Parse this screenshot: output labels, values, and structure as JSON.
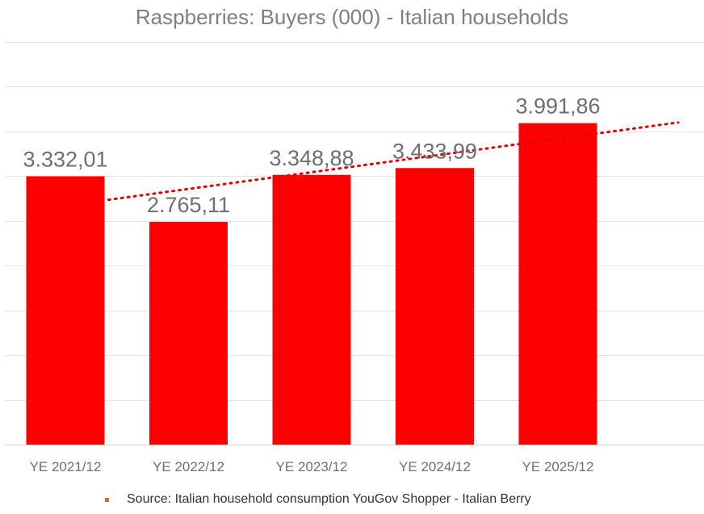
{
  "chart_data": {
    "type": "bar",
    "title": "Raspberries: Buyers (000) - Italian households",
    "categories": [
      "YE 2021/12",
      "YE 2022/12",
      "YE 2023/12",
      "YE 2024/12",
      "YE 2025/12"
    ],
    "values": [
      3332.01,
      2765.11,
      3348.88,
      3433.99,
      3991.86
    ],
    "value_labels": [
      "3.332,01",
      "2.765,11",
      "3.348,88",
      "3.433,99",
      "3.991,86"
    ],
    "ylim": [
      0,
      5000
    ],
    "grid": true,
    "y_tick_labels_shown": false,
    "trendline": {
      "type": "linear",
      "style": "dotted",
      "from": 3040,
      "to": 4000
    },
    "bar_color": "#ff0000",
    "trend_color": "#e00000",
    "xlabel": "",
    "ylabel": ""
  },
  "footer": {
    "source": "Source: Italian household consumption YouGov Shopper - Italian Berry",
    "marker_color": "#e8641b"
  }
}
